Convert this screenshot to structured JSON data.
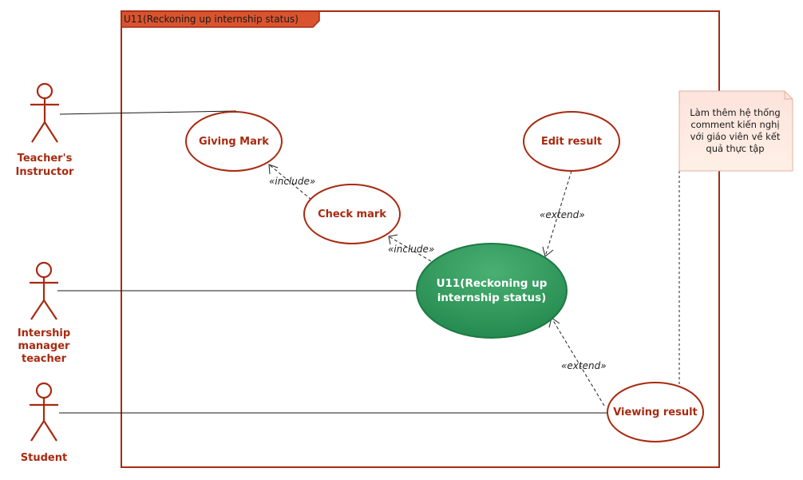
{
  "frame": {
    "title": "U11(Reckoning up internship status)"
  },
  "colors": {
    "actor": "#a82a10",
    "usecase_border": "#a82a10",
    "main_usecase_fill": "#2e9157",
    "frame_tab": "#d9542e",
    "note_fill": "#fde7e0"
  },
  "actors": [
    {
      "id": "teacher-instructor",
      "label_lines": [
        "Teacher's",
        "Instructor"
      ]
    },
    {
      "id": "intership-manager",
      "label_lines": [
        "Intership",
        "manager",
        "teacher"
      ]
    },
    {
      "id": "student",
      "label_lines": [
        "Student"
      ]
    }
  ],
  "usecases": {
    "giving_mark": "Giving Mark",
    "check_mark": "Check mark",
    "edit_result": "Edit result",
    "main": [
      "U11(Reckoning up",
      "internship status)"
    ],
    "viewing_result": "Viewing result"
  },
  "relations": {
    "include_1": "«include»",
    "include_2": "«include»",
    "extend_1": "«extend»",
    "extend_2": "«extend»"
  },
  "note": {
    "lines": [
      "Làm thêm hệ thống",
      "comment kiến nghị",
      "với giáo viên về kết",
      "quả thực tập"
    ]
  }
}
